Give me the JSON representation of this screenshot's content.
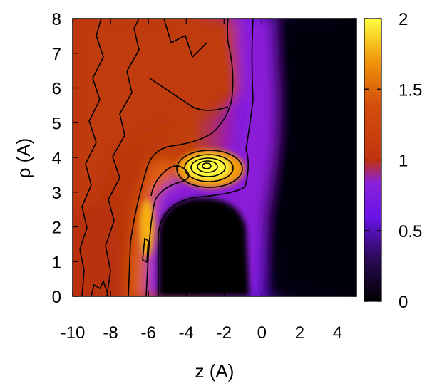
{
  "chart_data": {
    "type": "heatmap",
    "title": "",
    "xlabel": "z (A)",
    "ylabel": "ρ (A)",
    "xlim": [
      -10,
      5
    ],
    "ylim": [
      0,
      8
    ],
    "x_ticks": [
      -10,
      -8,
      -6,
      -4,
      -2,
      0,
      2,
      4
    ],
    "y_ticks": [
      0,
      1,
      2,
      3,
      4,
      5,
      6,
      7,
      8
    ],
    "x_tick_labels": [
      "-10",
      "-8",
      "-6",
      "-4",
      "-2",
      "0",
      "2",
      "4"
    ],
    "y_tick_labels": [
      "0",
      "1",
      "2",
      "3",
      "4",
      "5",
      "6",
      "7",
      "8"
    ],
    "colorbar": {
      "range": [
        0,
        2
      ],
      "ticks": [
        0,
        0.5,
        1,
        1.5,
        2
      ],
      "tick_labels": [
        "0",
        "0.5",
        "1",
        "1.5",
        "2"
      ],
      "colormap": [
        "#000000",
        "#3a0a5c",
        "#7a1bff",
        "#b3207a",
        "#c0330e",
        "#e0620a",
        "#ffb800",
        "#ffff40"
      ]
    },
    "features": [
      {
        "kind": "peak",
        "z": -3,
        "rho": 3.8,
        "value": 2.0
      },
      {
        "kind": "peak",
        "z": -6,
        "rho": 1.5,
        "value": 1.7
      },
      {
        "kind": "excluded_region",
        "z_range": [
          -5.5,
          -0.6
        ],
        "rho_max": 3.0,
        "value": 0.0
      }
    ]
  }
}
